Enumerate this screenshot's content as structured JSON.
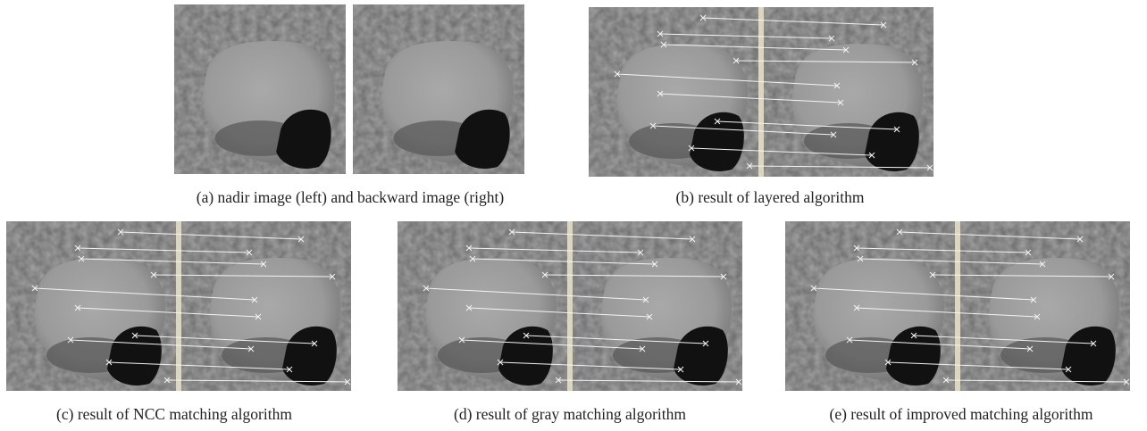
{
  "panels": [
    {
      "caption": "(a) nadir image (left) and backward image (right)"
    },
    {
      "caption": "(b) result of layered algorithm"
    },
    {
      "caption": "(c) result of NCC matching algorithm"
    },
    {
      "caption": "(d) result of gray matching algorithm"
    },
    {
      "caption": "(e) result of improved matching algorithm"
    }
  ]
}
